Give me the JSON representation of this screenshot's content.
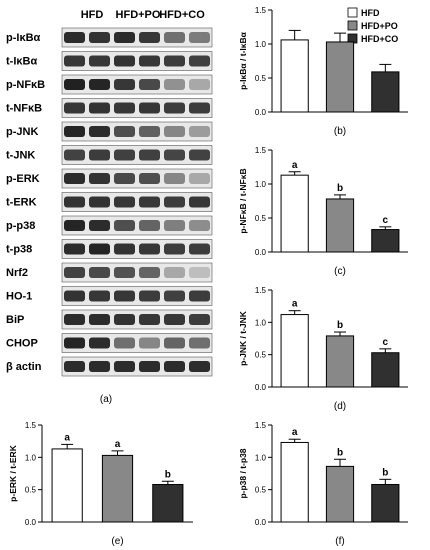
{
  "blot_panel": {
    "panel_label": "(a)",
    "group_headers": [
      "HFD",
      "HFD+PO",
      "HFD+CO"
    ],
    "rows": [
      "p-IκBα",
      "t-IκBα",
      "p-NFκB",
      "t-NFκB",
      "p-JNK",
      "t-JNK",
      "p-ERK",
      "t-ERK",
      "p-p38",
      "t-p38",
      "Nrf2",
      "HO-1",
      "BiP",
      "CHOP",
      "β actin"
    ],
    "band_intensity": [
      [
        0.85,
        0.82,
        0.85,
        0.8,
        0.55,
        0.5
      ],
      [
        0.8,
        0.8,
        0.82,
        0.8,
        0.78,
        0.76
      ],
      [
        0.9,
        0.88,
        0.8,
        0.72,
        0.4,
        0.3
      ],
      [
        0.8,
        0.82,
        0.8,
        0.8,
        0.78,
        0.78
      ],
      [
        0.88,
        0.85,
        0.7,
        0.62,
        0.45,
        0.35
      ],
      [
        0.75,
        0.78,
        0.76,
        0.76,
        0.74,
        0.75
      ],
      [
        0.85,
        0.82,
        0.72,
        0.7,
        0.45,
        0.3
      ],
      [
        0.82,
        0.82,
        0.8,
        0.8,
        0.78,
        0.8
      ],
      [
        0.88,
        0.85,
        0.7,
        0.6,
        0.48,
        0.42
      ],
      [
        0.85,
        0.88,
        0.82,
        0.8,
        0.78,
        0.78
      ],
      [
        0.75,
        0.72,
        0.68,
        0.6,
        0.3,
        0.2
      ],
      [
        0.82,
        0.8,
        0.8,
        0.78,
        0.76,
        0.78
      ],
      [
        0.85,
        0.85,
        0.82,
        0.8,
        0.8,
        0.78
      ],
      [
        0.88,
        0.85,
        0.55,
        0.45,
        0.6,
        0.55
      ],
      [
        0.85,
        0.85,
        0.85,
        0.85,
        0.85,
        0.85
      ]
    ]
  },
  "legend": {
    "items": [
      {
        "label": "HFD",
        "color": "#ffffff"
      },
      {
        "label": "HFD+PO",
        "color": "#888888"
      },
      {
        "label": "HFD+CO",
        "color": "#303030"
      }
    ]
  },
  "chart_data": [
    {
      "type": "bar",
      "panel_label": "(b)",
      "categories": [
        "HFD",
        "HFD+PO",
        "HFD+CO"
      ],
      "values": [
        1.06,
        1.03,
        0.59
      ],
      "errors": [
        0.14,
        0.13,
        0.11
      ],
      "letters": [
        "",
        "",
        ""
      ],
      "colors": [
        "#ffffff",
        "#888888",
        "#303030"
      ],
      "ylabel": "p-IκBα / t-IκBα",
      "ylim": [
        0,
        1.5
      ],
      "yticks": [
        0.0,
        0.5,
        1.0,
        1.5
      ],
      "legend": "top-right"
    },
    {
      "type": "bar",
      "panel_label": "(c)",
      "categories": [
        "HFD",
        "HFD+PO",
        "HFD+CO"
      ],
      "values": [
        1.13,
        0.78,
        0.33
      ],
      "errors": [
        0.05,
        0.06,
        0.04
      ],
      "letters": [
        "a",
        "b",
        "c"
      ],
      "colors": [
        "#ffffff",
        "#888888",
        "#303030"
      ],
      "ylabel": "p-NFκB / t-NFκB",
      "ylim": [
        0,
        1.5
      ],
      "yticks": [
        0.0,
        0.5,
        1.0,
        1.5
      ]
    },
    {
      "type": "bar",
      "panel_label": "(d)",
      "categories": [
        "HFD",
        "HFD+PO",
        "HFD+CO"
      ],
      "values": [
        1.12,
        0.79,
        0.53
      ],
      "errors": [
        0.06,
        0.06,
        0.06
      ],
      "letters": [
        "a",
        "b",
        "c"
      ],
      "colors": [
        "#ffffff",
        "#888888",
        "#303030"
      ],
      "ylabel": "p-JNK / t-JNK",
      "ylim": [
        0,
        1.5
      ],
      "yticks": [
        0.0,
        0.5,
        1.0,
        1.5
      ]
    },
    {
      "type": "bar",
      "panel_label": "(e)",
      "categories": [
        "HFD",
        "HFD+PO",
        "HFD+CO"
      ],
      "values": [
        1.13,
        1.03,
        0.58
      ],
      "errors": [
        0.07,
        0.07,
        0.05
      ],
      "letters": [
        "a",
        "a",
        "b"
      ],
      "colors": [
        "#ffffff",
        "#888888",
        "#303030"
      ],
      "ylabel": "p-ERK / t-ERK",
      "ylim": [
        0,
        1.5
      ],
      "yticks": [
        0.0,
        0.5,
        1.0,
        1.5
      ]
    },
    {
      "type": "bar",
      "panel_label": "(f)",
      "categories": [
        "HFD",
        "HFD+PO",
        "HFD+CO"
      ],
      "values": [
        1.23,
        0.86,
        0.58
      ],
      "errors": [
        0.05,
        0.11,
        0.08
      ],
      "letters": [
        "a",
        "b",
        "b"
      ],
      "colors": [
        "#ffffff",
        "#888888",
        "#303030"
      ],
      "ylabel": "p-p38 / t-p38",
      "ylim": [
        0,
        1.5
      ],
      "yticks": [
        0.0,
        0.5,
        1.0,
        1.5
      ]
    }
  ]
}
